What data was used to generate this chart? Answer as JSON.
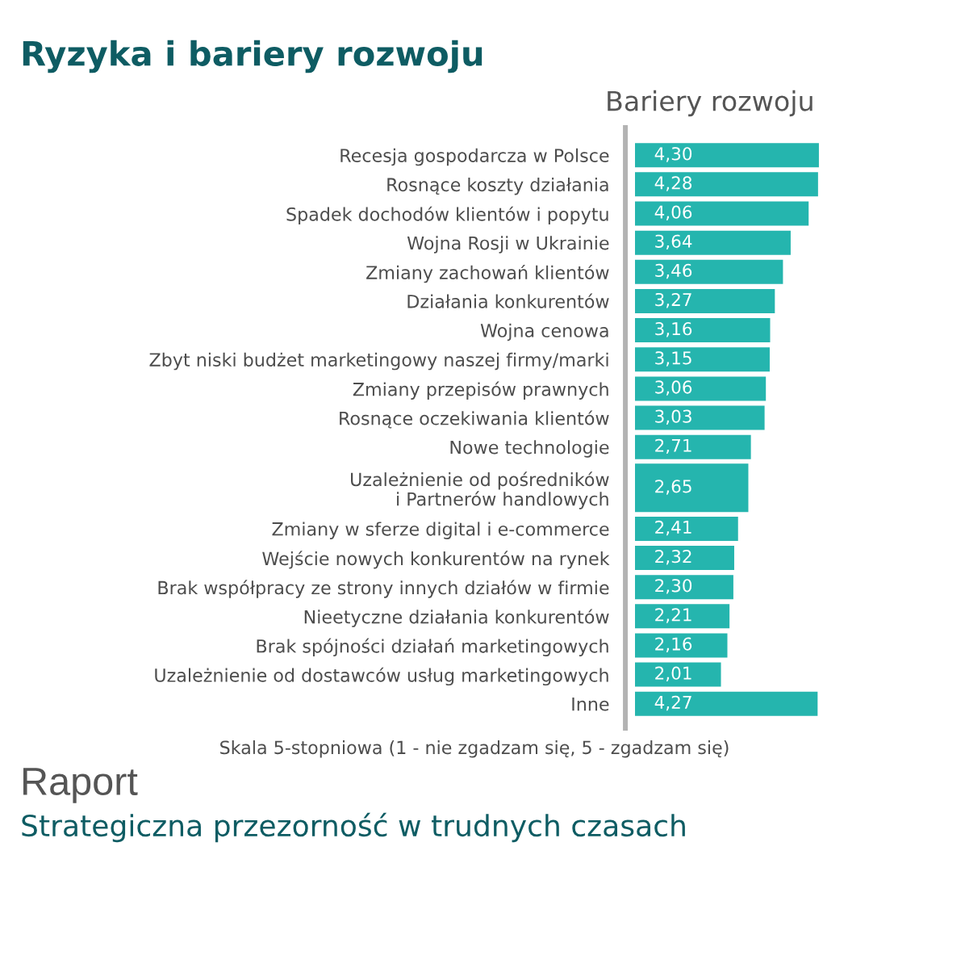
{
  "chart_data": {
    "type": "bar",
    "orientation": "horizontal",
    "title": "Ryzyka i bariery rozwoju",
    "subtitle": "Bariery rozwoju",
    "xlabel": "Skala 5-stopniowa (1 - nie zgadzam się, 5 - zgadzam się)",
    "categories": [
      "Recesja gospodarcza w Polsce",
      "Rosnące koszty działania",
      "Spadek dochodów klientów i popytu",
      "Wojna Rosji w Ukrainie",
      "Zmiany zachowań klientów",
      "Działania konkurentów",
      "Wojna cenowa",
      "Zbyt niski budżet marketingowy naszej firmy/marki",
      "Zmiany przepisów prawnych",
      "Rosnące oczekiwania klientów",
      "Nowe technologie",
      "Uzależnienie od pośredników\ni Partnerów handlowych",
      "Zmiany w sferze digital i e-commerce",
      "Wejście nowych konkurentów na rynek",
      "Brak współpracy ze strony innych działów w firmie",
      "Nieetyczne działania konkurentów",
      "Brak spójności działań marketingowych",
      "Uzależnienie od dostawców usług marketingowych",
      "Inne"
    ],
    "values": [
      4.3,
      4.28,
      4.06,
      3.64,
      3.46,
      3.27,
      3.16,
      3.15,
      3.06,
      3.03,
      2.71,
      2.65,
      2.41,
      2.32,
      2.3,
      2.21,
      2.16,
      2.01,
      4.27
    ],
    "value_labels": [
      "4,30",
      "4,28",
      "4,06",
      "3,64",
      "3,46",
      "3,27",
      "3,16",
      "3,15",
      "3,06",
      "3,03",
      "2,71",
      "2,65",
      "2,41",
      "2,32",
      "2,30",
      "2,21",
      "2,16",
      "2,01",
      "4,27"
    ],
    "color": "#25b5ae",
    "tick_labels": "y",
    "annotations": [
      "Raport",
      "Strategiczna przezorność w trudnych czasach"
    ]
  }
}
